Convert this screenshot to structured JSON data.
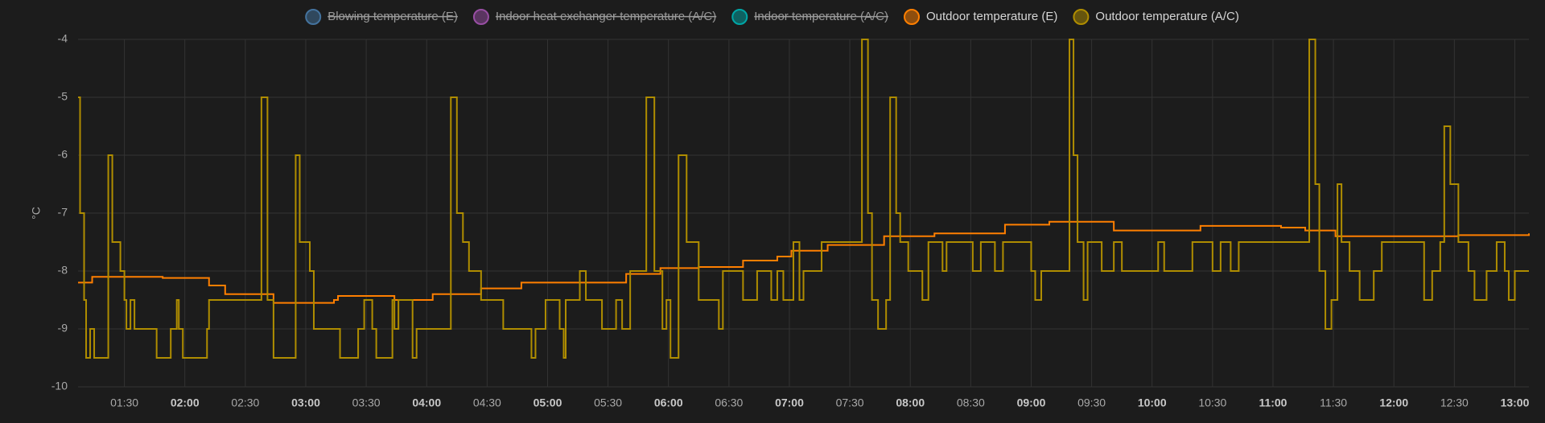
{
  "chart_data": {
    "type": "line",
    "step": true,
    "y_label": "°C",
    "xlim": [
      "01:07",
      "13:07"
    ],
    "xticks": [
      "01:30",
      "02:00",
      "02:30",
      "03:00",
      "03:30",
      "04:00",
      "04:30",
      "05:00",
      "05:30",
      "06:00",
      "06:30",
      "07:00",
      "07:30",
      "08:00",
      "08:30",
      "09:00",
      "09:30",
      "10:00",
      "10:30",
      "11:00",
      "11:30",
      "12:00",
      "12:30",
      "13:00"
    ],
    "ylim": [
      -10,
      -4
    ],
    "yticks": [
      -10,
      -9,
      -8,
      -7,
      -6,
      -5,
      -4
    ],
    "grid": true,
    "legend": "top",
    "series": [
      {
        "name": "Blowing temperature (E)",
        "color": "#44739e",
        "hidden": true
      },
      {
        "name": "Indoor heat exchanger temperature (A/C)",
        "color": "#984ea3",
        "hidden": true
      },
      {
        "name": "Indoor temperature (A/C)",
        "color": "#00a6a6",
        "hidden": true
      },
      {
        "name": "Outdoor temperature (E)",
        "color": "#ff7f00",
        "x": [
          "01:07",
          "01:14",
          "01:49",
          "02:12",
          "02:20",
          "02:44",
          "03:14",
          "03:16",
          "03:44",
          "04:03",
          "04:27",
          "04:47",
          "05:39",
          "05:56",
          "06:15",
          "06:37",
          "06:54",
          "07:01",
          "07:19",
          "07:47",
          "08:12",
          "08:47",
          "09:09",
          "09:41",
          "10:24",
          "11:04",
          "11:16",
          "11:31",
          "12:32",
          "13:07"
        ],
        "values": [
          -8.2,
          -8.1,
          -8.12,
          -8.25,
          -8.4,
          -8.55,
          -8.5,
          -8.43,
          -8.5,
          -8.4,
          -8.3,
          -8.2,
          -8.05,
          -7.95,
          -7.93,
          -7.82,
          -7.75,
          -7.65,
          -7.55,
          -7.4,
          -7.35,
          -7.2,
          -7.15,
          -7.3,
          -7.22,
          -7.25,
          -7.3,
          -7.4,
          -7.38,
          -7.35
        ]
      },
      {
        "name": "Outdoor temperature (A/C)",
        "color": "#af8d00",
        "x": [
          "01:07",
          "01:08",
          "01:10",
          "01:11",
          "01:13",
          "01:15",
          "01:22",
          "01:24",
          "01:28",
          "01:30",
          "01:31",
          "01:33",
          "01:35",
          "01:46",
          "01:53",
          "01:56",
          "01:57",
          "01:59",
          "02:11",
          "02:12",
          "02:38",
          "02:41",
          "02:44",
          "02:55",
          "02:57",
          "03:02",
          "03:04",
          "03:17",
          "03:26",
          "03:29",
          "03:33",
          "03:35",
          "03:43",
          "03:44",
          "03:46",
          "03:53",
          "03:55",
          "04:12",
          "04:15",
          "04:18",
          "04:21",
          "04:27",
          "04:38",
          "04:52",
          "04:54",
          "04:59",
          "05:06",
          "05:08",
          "05:09",
          "05:16",
          "05:19",
          "05:27",
          "05:34",
          "05:37",
          "05:41",
          "05:49",
          "05:53",
          "05:57",
          "05:59",
          "06:01",
          "06:05",
          "06:09",
          "06:15",
          "06:25",
          "06:27",
          "06:37",
          "06:44",
          "06:51",
          "06:54",
          "06:57",
          "07:02",
          "07:05",
          "07:07",
          "07:16",
          "07:36",
          "07:39",
          "07:41",
          "07:44",
          "07:48",
          "07:50",
          "07:53",
          "07:55",
          "07:59",
          "08:06",
          "08:09",
          "08:16",
          "08:18",
          "08:31",
          "08:35",
          "08:42",
          "08:46",
          "09:00",
          "09:02",
          "09:05",
          "09:19",
          "09:21",
          "09:23",
          "09:26",
          "09:28",
          "09:35",
          "09:41",
          "09:45",
          "10:03",
          "10:06",
          "10:20",
          "10:30",
          "10:34",
          "10:39",
          "10:43",
          "11:18",
          "11:21",
          "11:23",
          "11:26",
          "11:29",
          "11:32",
          "11:34",
          "11:38",
          "11:43",
          "11:50",
          "11:54",
          "12:15",
          "12:19",
          "12:23",
          "12:25",
          "12:28",
          "12:32",
          "12:37",
          "12:40",
          "12:46",
          "12:51",
          "12:55",
          "12:57",
          "13:00",
          "13:07"
        ],
        "values": [
          -5,
          -7,
          -8.5,
          -9.5,
          -9,
          -9.5,
          -6,
          -7.5,
          -8,
          -8.5,
          -9,
          -8.5,
          -9,
          -9.5,
          -9,
          -8.5,
          -9,
          -9.5,
          -9,
          -8.5,
          -5,
          -8.5,
          -9.5,
          -6,
          -7.5,
          -8,
          -9,
          -9.5,
          -9,
          -8.5,
          -9,
          -9.5,
          -8.5,
          -9,
          -8.5,
          -9.5,
          -9,
          -5,
          -7,
          -7.5,
          -8,
          -8.5,
          -9,
          -9.5,
          -9,
          -8.5,
          -9,
          -9.5,
          -8.5,
          -8,
          -8.5,
          -9,
          -8.5,
          -9,
          -8,
          -5,
          -8,
          -9,
          -8.5,
          -9.5,
          -6,
          -7.5,
          -8.5,
          -9,
          -8,
          -8.5,
          -8,
          -8.5,
          -8,
          -8.5,
          -7.5,
          -8.5,
          -8,
          -7.5,
          -4,
          -7,
          -8.5,
          -9,
          -8.5,
          -5,
          -7,
          -7.5,
          -8,
          -8.5,
          -7.5,
          -8,
          -7.5,
          -8,
          -7.5,
          -8,
          -7.5,
          -8,
          -8.5,
          -8,
          -4,
          -6,
          -7.5,
          -8.5,
          -7.5,
          -8,
          -7.5,
          -8,
          -7.5,
          -8,
          -7.5,
          -8,
          -7.5,
          -8,
          -7.5,
          -4,
          -6.5,
          -8,
          -9,
          -8.5,
          -6.5,
          -7.5,
          -8,
          -8.5,
          -8,
          -7.5,
          -8.5,
          -8,
          -7.5,
          -5.5,
          -6.5,
          -7.5,
          -8,
          -8.5,
          -8,
          -7.5,
          -8,
          -8.5,
          -8,
          -8
        ]
      }
    ]
  }
}
